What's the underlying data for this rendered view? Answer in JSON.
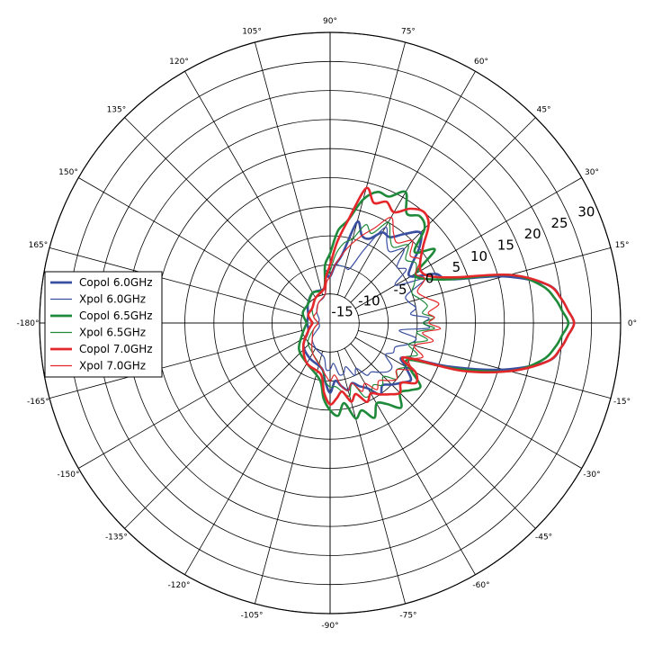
{
  "chart_data": {
    "type": "polar-line",
    "title": "",
    "theta_ticks": [
      "0°",
      "15°",
      "30°",
      "45°",
      "60°",
      "75°",
      "90°",
      "105°",
      "120°",
      "135°",
      "150°",
      "165°",
      "-180°",
      "-165°",
      "-150°",
      "-135°",
      "-120°",
      "-105°",
      "-90°",
      "-75°",
      "-60°",
      "-45°",
      "-30°",
      "-15°"
    ],
    "r_ticks": [
      "-15",
      "-10",
      "-5",
      "0",
      "5",
      "10",
      "15",
      "20",
      "25",
      "30"
    ],
    "r_range": [
      -20,
      30
    ],
    "grid": true,
    "legend_position": "left",
    "legend": [
      "Copol 6.0GHz",
      "Xpol 6.0GHz",
      "Copol 6.5GHz",
      "Xpol 6.5GHz",
      "Copol 7.0GHz",
      "Xpol 7.0GHz"
    ],
    "colors": {
      "6.0GHz": "#3a4fa0",
      "6.5GHz": "#1f8a3a",
      "7.0GHz": "#e3272a"
    },
    "theta_deg": [
      -180,
      -160,
      -140,
      -120,
      -100,
      -95,
      -90,
      -85,
      -80,
      -75,
      -70,
      -65,
      -60,
      -55,
      -50,
      -45,
      -40,
      -35,
      -30,
      -25,
      -20,
      -15,
      -10,
      -6,
      -3,
      0,
      3,
      6,
      10,
      15,
      20,
      25,
      30,
      35,
      40,
      45,
      50,
      55,
      60,
      65,
      70,
      75,
      80,
      85,
      90,
      95,
      100,
      120,
      140,
      160,
      180
    ],
    "series": [
      {
        "name": "Copol 6.0GHz",
        "style": "thick",
        "r": [
          -16,
          -16,
          -14,
          -13,
          -12,
          -10,
          -8,
          -10,
          -9,
          -8,
          -9,
          -8,
          -7,
          -5,
          -6,
          -5,
          -4,
          -3,
          -5,
          -6,
          2,
          11,
          18,
          20,
          21,
          22,
          21,
          20,
          18,
          11,
          2,
          0,
          -4,
          -3,
          0,
          2,
          0,
          -2,
          -2,
          -4,
          -4,
          -2,
          -8,
          -10,
          -12,
          -12,
          -14,
          -14,
          -15,
          -16,
          -16
        ]
      },
      {
        "name": "Xpol 6.0GHz",
        "style": "thin",
        "r": [
          -18,
          -18,
          -16,
          -15,
          -14,
          -12,
          -12,
          -13,
          -11,
          -11,
          -12,
          -10,
          -11,
          -9,
          -9,
          -8,
          -7,
          -7,
          -9,
          -8,
          -8,
          -6,
          -5,
          -8,
          -3,
          -4,
          -3,
          -6,
          -5,
          -6,
          -6,
          -2,
          -7,
          -4,
          -5,
          -2,
          -4,
          -3,
          -1,
          -6,
          -10,
          -10,
          -10,
          -10,
          -12,
          -11,
          -15,
          -16,
          -17,
          -18,
          -18
        ]
      },
      {
        "name": "Copol 6.5GHz",
        "style": "thick",
        "r": [
          -16,
          -15,
          -13,
          -12,
          -10,
          -7,
          -5,
          -4,
          -6,
          -3,
          -4,
          -2,
          -4,
          -3,
          -1,
          -3,
          -2,
          -1,
          -4,
          -5,
          3,
          12,
          17,
          19,
          20,
          21,
          20,
          19,
          17,
          12,
          2,
          -2,
          -3,
          2,
          -1,
          3,
          4,
          3,
          6,
          4,
          4,
          2,
          -2,
          -4,
          -8,
          -10,
          -14,
          -14,
          -15,
          -15,
          -16
        ]
      },
      {
        "name": "Xpol 6.5GHz",
        "style": "thin",
        "r": [
          -18,
          -17,
          -15,
          -14,
          -12,
          -10,
          -9,
          -9,
          -8,
          -7,
          -9,
          -6,
          -6,
          -7,
          -6,
          -7,
          -5,
          -6,
          -5,
          -6,
          -4,
          -6,
          -3,
          -5,
          -2,
          -4,
          -2,
          -4,
          -3,
          -4,
          -5,
          -4,
          -3,
          -2,
          -3,
          -1,
          -3,
          -2,
          0,
          -3,
          -2,
          -5,
          -6,
          -8,
          -11,
          -12,
          -14,
          -15,
          -16,
          -17,
          -18
        ]
      },
      {
        "name": "Copol 7.0GHz",
        "style": "thick",
        "r": [
          -17,
          -16,
          -14,
          -12,
          -11,
          -8,
          -6,
          -7,
          -8,
          -6,
          -7,
          -5,
          -6,
          -5,
          -4,
          -3,
          -4,
          -2,
          -3,
          -6,
          4,
          12,
          18,
          20,
          21,
          22,
          21,
          20,
          18,
          12,
          3,
          -1,
          -2,
          -1,
          1,
          4,
          5,
          4,
          2,
          3,
          2,
          4,
          -2,
          -6,
          -10,
          -12,
          -14,
          -15,
          -16,
          -16,
          -17
        ]
      },
      {
        "name": "Xpol 7.0GHz",
        "style": "thin",
        "r": [
          -18,
          -17,
          -16,
          -14,
          -12,
          -11,
          -10,
          -11,
          -9,
          -8,
          -9,
          -7,
          -8,
          -6,
          -7,
          -6,
          -5,
          -6,
          -4,
          -5,
          -3,
          -5,
          -2,
          -4,
          -1,
          -3,
          -2,
          -3,
          -1,
          -3,
          -4,
          -2,
          -3,
          -1,
          -2,
          0,
          -2,
          -1,
          1,
          -2,
          -4,
          -6,
          -8,
          -10,
          -12,
          -13,
          -15,
          -16,
          -17,
          -17,
          -18
        ]
      }
    ]
  }
}
